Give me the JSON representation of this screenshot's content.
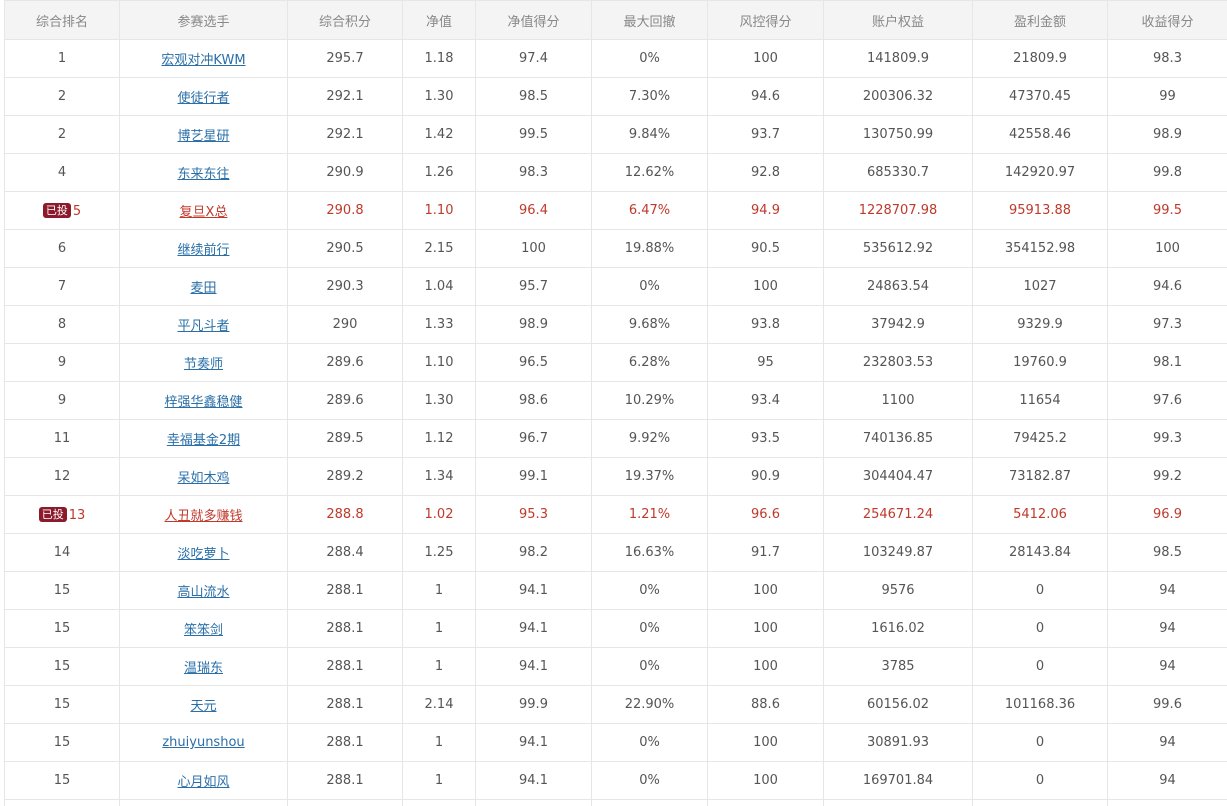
{
  "columns": [
    "综合排名",
    "参赛选手",
    "综合积分",
    "净值",
    "净值得分",
    "最大回撤",
    "风控得分",
    "账户权益",
    "盈利金额",
    "收益得分"
  ],
  "rows": [
    {
      "rank": "1",
      "badge": "",
      "highlight": false,
      "player": "宏观对冲KWM",
      "score": "295.7",
      "nav": "1.18",
      "nav_score": "97.4",
      "drawdown": "0%",
      "risk_score": "100",
      "equity": "141809.9",
      "profit": "21809.9",
      "return_score": "98.3"
    },
    {
      "rank": "2",
      "badge": "",
      "highlight": false,
      "player": "使徒行者",
      "score": "292.1",
      "nav": "1.30",
      "nav_score": "98.5",
      "drawdown": "7.30%",
      "risk_score": "94.6",
      "equity": "200306.32",
      "profit": "47370.45",
      "return_score": "99"
    },
    {
      "rank": "2",
      "badge": "",
      "highlight": false,
      "player": "博艺星研",
      "score": "292.1",
      "nav": "1.42",
      "nav_score": "99.5",
      "drawdown": "9.84%",
      "risk_score": "93.7",
      "equity": "130750.99",
      "profit": "42558.46",
      "return_score": "98.9"
    },
    {
      "rank": "4",
      "badge": "",
      "highlight": false,
      "player": "东来东往",
      "score": "290.9",
      "nav": "1.26",
      "nav_score": "98.3",
      "drawdown": "12.62%",
      "risk_score": "92.8",
      "equity": "685330.7",
      "profit": "142920.97",
      "return_score": "99.8"
    },
    {
      "rank": "5",
      "badge": "已投",
      "highlight": true,
      "player": "复旦X总",
      "score": "290.8",
      "nav": "1.10",
      "nav_score": "96.4",
      "drawdown": "6.47%",
      "risk_score": "94.9",
      "equity": "1228707.98",
      "profit": "95913.88",
      "return_score": "99.5"
    },
    {
      "rank": "6",
      "badge": "",
      "highlight": false,
      "player": "继续前行",
      "score": "290.5",
      "nav": "2.15",
      "nav_score": "100",
      "drawdown": "19.88%",
      "risk_score": "90.5",
      "equity": "535612.92",
      "profit": "354152.98",
      "return_score": "100"
    },
    {
      "rank": "7",
      "badge": "",
      "highlight": false,
      "player": "麦田",
      "score": "290.3",
      "nav": "1.04",
      "nav_score": "95.7",
      "drawdown": "0%",
      "risk_score": "100",
      "equity": "24863.54",
      "profit": "1027",
      "return_score": "94.6"
    },
    {
      "rank": "8",
      "badge": "",
      "highlight": false,
      "player": "平凡斗者",
      "score": "290",
      "nav": "1.33",
      "nav_score": "98.9",
      "drawdown": "9.68%",
      "risk_score": "93.8",
      "equity": "37942.9",
      "profit": "9329.9",
      "return_score": "97.3"
    },
    {
      "rank": "9",
      "badge": "",
      "highlight": false,
      "player": "节奏师",
      "score": "289.6",
      "nav": "1.10",
      "nav_score": "96.5",
      "drawdown": "6.28%",
      "risk_score": "95",
      "equity": "232803.53",
      "profit": "19760.9",
      "return_score": "98.1"
    },
    {
      "rank": "9",
      "badge": "",
      "highlight": false,
      "player": "梓强华鑫稳健",
      "score": "289.6",
      "nav": "1.30",
      "nav_score": "98.6",
      "drawdown": "10.29%",
      "risk_score": "93.4",
      "equity": "1100",
      "profit": "11654",
      "return_score": "97.6"
    },
    {
      "rank": "11",
      "badge": "",
      "highlight": false,
      "player": "幸福基金2期",
      "score": "289.5",
      "nav": "1.12",
      "nav_score": "96.7",
      "drawdown": "9.92%",
      "risk_score": "93.5",
      "equity": "740136.85",
      "profit": "79425.2",
      "return_score": "99.3"
    },
    {
      "rank": "12",
      "badge": "",
      "highlight": false,
      "player": "呆如木鸡",
      "score": "289.2",
      "nav": "1.34",
      "nav_score": "99.1",
      "drawdown": "19.37%",
      "risk_score": "90.9",
      "equity": "304404.47",
      "profit": "73182.87",
      "return_score": "99.2"
    },
    {
      "rank": "13",
      "badge": "已投",
      "highlight": true,
      "player": "人丑就多赚钱",
      "score": "288.8",
      "nav": "1.02",
      "nav_score": "95.3",
      "drawdown": "1.21%",
      "risk_score": "96.6",
      "equity": "254671.24",
      "profit": "5412.06",
      "return_score": "96.9"
    },
    {
      "rank": "14",
      "badge": "",
      "highlight": false,
      "player": "淡吃萝卜",
      "score": "288.4",
      "nav": "1.25",
      "nav_score": "98.2",
      "drawdown": "16.63%",
      "risk_score": "91.7",
      "equity": "103249.87",
      "profit": "28143.84",
      "return_score": "98.5"
    },
    {
      "rank": "15",
      "badge": "",
      "highlight": false,
      "player": "高山流水",
      "score": "288.1",
      "nav": "1",
      "nav_score": "94.1",
      "drawdown": "0%",
      "risk_score": "100",
      "equity": "9576",
      "profit": "0",
      "return_score": "94"
    },
    {
      "rank": "15",
      "badge": "",
      "highlight": false,
      "player": "笨笨剑",
      "score": "288.1",
      "nav": "1",
      "nav_score": "94.1",
      "drawdown": "0%",
      "risk_score": "100",
      "equity": "1616.02",
      "profit": "0",
      "return_score": "94"
    },
    {
      "rank": "15",
      "badge": "",
      "highlight": false,
      "player": "温瑞东",
      "score": "288.1",
      "nav": "1",
      "nav_score": "94.1",
      "drawdown": "0%",
      "risk_score": "100",
      "equity": "3785",
      "profit": "0",
      "return_score": "94"
    },
    {
      "rank": "15",
      "badge": "",
      "highlight": false,
      "player": "天元",
      "score": "288.1",
      "nav": "2.14",
      "nav_score": "99.9",
      "drawdown": "22.90%",
      "risk_score": "88.6",
      "equity": "60156.02",
      "profit": "101168.36",
      "return_score": "99.6"
    },
    {
      "rank": "15",
      "badge": "",
      "highlight": false,
      "player": "zhuiyunshou",
      "score": "288.1",
      "nav": "1",
      "nav_score": "94.1",
      "drawdown": "0%",
      "risk_score": "100",
      "equity": "30891.93",
      "profit": "0",
      "return_score": "94"
    },
    {
      "rank": "15",
      "badge": "",
      "highlight": false,
      "player": "心月如风",
      "score": "288.1",
      "nav": "1",
      "nav_score": "94.1",
      "drawdown": "0%",
      "risk_score": "100",
      "equity": "169701.84",
      "profit": "0",
      "return_score": "94"
    },
    {
      "rank": "",
      "badge": "",
      "highlight": false,
      "player": "",
      "score": "",
      "nav": "",
      "nav_score": "",
      "drawdown": "",
      "risk_score": "",
      "equity": "",
      "profit": "",
      "return_score": ""
    }
  ],
  "colors": {
    "link": "#2a6fa8",
    "highlight_text": "#c0392b",
    "badge_bg": "#8b1a2b",
    "header_bg": "#f4f4f4",
    "border": "#e6e6e6"
  }
}
